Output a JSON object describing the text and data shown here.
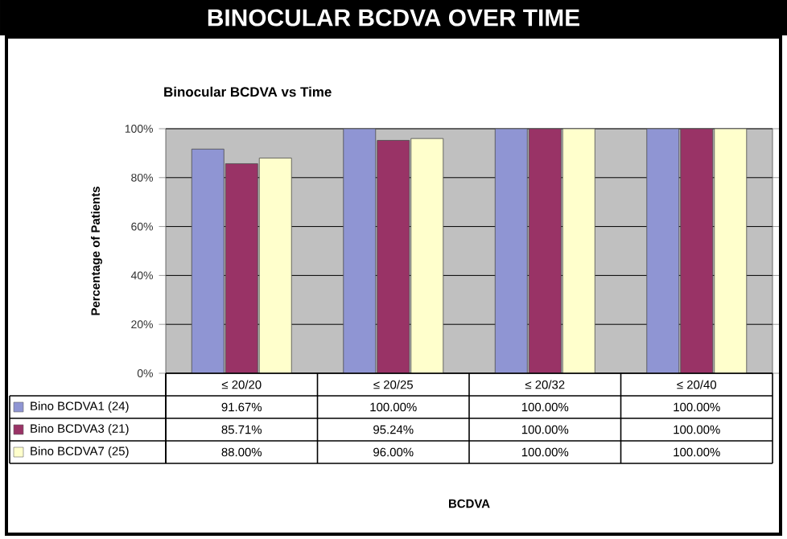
{
  "chart_data": {
    "type": "bar",
    "title": "BINOCULAR BCDVA OVER TIME",
    "subtitle": "Binocular BCDVA vs Time",
    "annotations": [
      "BCDVA"
    ],
    "ylabel": "Percentage of Patients",
    "categories": [
      "≤ 20/20",
      "≤ 20/25",
      "≤ 20/32",
      "≤ 20/40"
    ],
    "series": [
      {
        "name": "Bino BCDVA1 (24)",
        "color": "#8f95d3",
        "values": [
          91.67,
          100,
          100,
          100
        ],
        "value_labels": [
          "91.67%",
          "100.00%",
          "100.00%",
          "100.00%"
        ]
      },
      {
        "name": "Bino BCDVA3 (21)",
        "color": "#993366",
        "values": [
          85.71,
          95.24,
          100,
          100
        ],
        "value_labels": [
          "85.71%",
          "95.24%",
          "100.00%",
          "100.00%"
        ]
      },
      {
        "name": "Bino BCDVA7 (25)",
        "color": "#ffffcc",
        "values": [
          88,
          96,
          100,
          100
        ],
        "value_labels": [
          "88.00%",
          "96.00%",
          "100.00%",
          "100.00%"
        ]
      }
    ],
    "ylim": [
      0,
      100
    ],
    "yticks": [
      {
        "value": 0,
        "label": "0%"
      },
      {
        "value": 20,
        "label": "20%"
      },
      {
        "value": 40,
        "label": "40%"
      },
      {
        "value": 60,
        "label": "60%"
      },
      {
        "value": 80,
        "label": "80%"
      },
      {
        "value": 100,
        "label": "100%"
      }
    ],
    "grid": "y",
    "legend": "bottom left"
  }
}
